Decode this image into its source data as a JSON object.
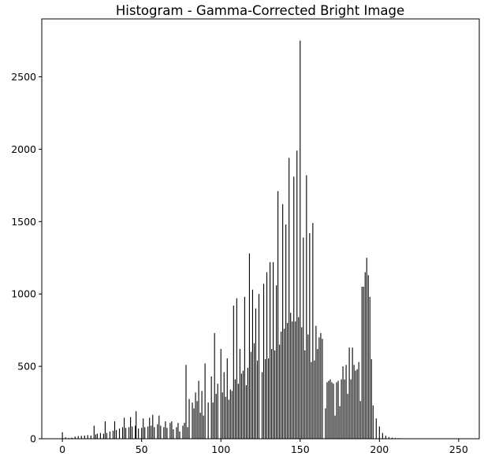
{
  "chart_data": {
    "type": "bar",
    "title": "Histogram - Gamma-Corrected Bright Image",
    "xlabel": "",
    "ylabel": "",
    "xlim": [
      -13,
      263
    ],
    "ylim": [
      0,
      2900
    ],
    "x_ticks": [
      0,
      50,
      100,
      150,
      200,
      250
    ],
    "y_ticks": [
      0,
      500,
      1000,
      1500,
      2000,
      2500
    ],
    "bar_color": "#000000",
    "grid": false,
    "bars": [
      [
        0,
        45
      ],
      [
        2,
        10
      ],
      [
        4,
        5
      ],
      [
        6,
        8
      ],
      [
        8,
        15
      ],
      [
        10,
        18
      ],
      [
        12,
        20
      ],
      [
        14,
        22
      ],
      [
        16,
        25
      ],
      [
        18,
        22
      ],
      [
        20,
        90
      ],
      [
        21,
        30
      ],
      [
        22,
        35
      ],
      [
        24,
        40
      ],
      [
        26,
        35
      ],
      [
        27,
        120
      ],
      [
        28,
        40
      ],
      [
        30,
        50
      ],
      [
        32,
        55
      ],
      [
        33,
        120
      ],
      [
        34,
        60
      ],
      [
        36,
        70
      ],
      [
        38,
        80
      ],
      [
        39,
        145
      ],
      [
        40,
        75
      ],
      [
        42,
        80
      ],
      [
        43,
        150
      ],
      [
        44,
        85
      ],
      [
        46,
        90
      ],
      [
        46.5,
        190
      ],
      [
        48,
        70
      ],
      [
        50,
        75
      ],
      [
        51,
        140
      ],
      [
        52,
        80
      ],
      [
        54,
        85
      ],
      [
        55,
        145
      ],
      [
        56,
        90
      ],
      [
        57,
        165
      ],
      [
        58,
        80
      ],
      [
        60,
        100
      ],
      [
        61,
        160
      ],
      [
        62,
        90
      ],
      [
        64,
        80
      ],
      [
        65,
        120
      ],
      [
        66,
        75
      ],
      [
        68,
        110
      ],
      [
        69,
        120
      ],
      [
        70,
        65
      ],
      [
        72,
        80
      ],
      [
        73,
        110
      ],
      [
        74,
        50
      ],
      [
        76,
        90
      ],
      [
        77,
        110
      ],
      [
        78,
        510
      ],
      [
        79,
        80
      ],
      [
        80,
        275
      ],
      [
        82,
        250
      ],
      [
        83,
        210
      ],
      [
        84,
        320
      ],
      [
        85,
        260
      ],
      [
        86,
        400
      ],
      [
        87,
        180
      ],
      [
        88,
        330
      ],
      [
        89,
        160
      ],
      [
        90,
        520
      ],
      [
        92,
        250
      ],
      [
        94,
        430
      ],
      [
        95,
        250
      ],
      [
        96,
        730
      ],
      [
        97,
        310
      ],
      [
        98,
        380
      ],
      [
        100,
        620
      ],
      [
        101,
        320
      ],
      [
        102,
        460
      ],
      [
        103,
        290
      ],
      [
        104,
        555
      ],
      [
        105,
        270
      ],
      [
        106,
        340
      ],
      [
        107,
        330
      ],
      [
        108,
        920
      ],
      [
        109,
        410
      ],
      [
        110,
        970
      ],
      [
        111,
        380
      ],
      [
        112,
        620
      ],
      [
        113,
        450
      ],
      [
        114,
        470
      ],
      [
        115,
        980
      ],
      [
        116,
        370
      ],
      [
        117,
        490
      ],
      [
        118,
        1280
      ],
      [
        119,
        600
      ],
      [
        120,
        1030
      ],
      [
        121,
        660
      ],
      [
        122,
        900
      ],
      [
        123,
        540
      ],
      [
        124,
        1000
      ],
      [
        126,
        460
      ],
      [
        127,
        1070
      ],
      [
        128,
        550
      ],
      [
        129,
        1150
      ],
      [
        130,
        555
      ],
      [
        131,
        1220
      ],
      [
        132,
        620
      ],
      [
        133,
        1220
      ],
      [
        134,
        610
      ],
      [
        135,
        1060
      ],
      [
        136,
        1710
      ],
      [
        137,
        650
      ],
      [
        138,
        740
      ],
      [
        139,
        1620
      ],
      [
        140,
        760
      ],
      [
        141,
        1480
      ],
      [
        142,
        800
      ],
      [
        143,
        1940
      ],
      [
        144,
        870
      ],
      [
        145,
        810
      ],
      [
        146,
        1810
      ],
      [
        147,
        810
      ],
      [
        148,
        1990
      ],
      [
        149,
        840
      ],
      [
        150,
        2750
      ],
      [
        151,
        770
      ],
      [
        152,
        1390
      ],
      [
        153,
        610
      ],
      [
        154,
        1820
      ],
      [
        155,
        720
      ],
      [
        156,
        1420
      ],
      [
        157,
        530
      ],
      [
        158,
        1490
      ],
      [
        159,
        540
      ],
      [
        160,
        780
      ],
      [
        161,
        620
      ],
      [
        162,
        700
      ],
      [
        163,
        730
      ],
      [
        164,
        690
      ],
      [
        166,
        210
      ],
      [
        167,
        390
      ],
      [
        168,
        400
      ],
      [
        169,
        410
      ],
      [
        170,
        390
      ],
      [
        171,
        380
      ],
      [
        172,
        160
      ],
      [
        173,
        390
      ],
      [
        174,
        400
      ],
      [
        175,
        225
      ],
      [
        176,
        410
      ],
      [
        177,
        500
      ],
      [
        178,
        410
      ],
      [
        179,
        510
      ],
      [
        180,
        310
      ],
      [
        181,
        630
      ],
      [
        182,
        410
      ],
      [
        183,
        630
      ],
      [
        184,
        510
      ],
      [
        185,
        470
      ],
      [
        186,
        480
      ],
      [
        187,
        530
      ],
      [
        188,
        260
      ],
      [
        189,
        1050
      ],
      [
        190,
        1050
      ],
      [
        191,
        1150
      ],
      [
        192,
        1250
      ],
      [
        193,
        1130
      ],
      [
        194,
        980
      ],
      [
        195,
        550
      ],
      [
        196,
        230
      ],
      [
        198,
        140
      ],
      [
        200,
        85
      ],
      [
        202,
        40
      ],
      [
        204,
        20
      ],
      [
        206,
        12
      ],
      [
        208,
        8
      ],
      [
        210,
        5
      ],
      [
        212,
        4
      ],
      [
        213,
        3
      ],
      [
        214,
        2
      ],
      [
        216,
        2
      ],
      [
        218,
        2
      ],
      [
        220,
        2
      ],
      [
        222,
        1
      ],
      [
        224,
        2
      ],
      [
        226,
        1
      ],
      [
        228,
        2
      ],
      [
        230,
        1
      ],
      [
        232,
        1
      ],
      [
        234,
        1
      ],
      [
        236,
        1
      ],
      [
        238,
        1
      ],
      [
        240,
        1
      ],
      [
        242,
        1
      ],
      [
        244,
        1
      ],
      [
        246,
        1
      ],
      [
        248,
        1
      ],
      [
        250,
        1
      ],
      [
        252,
        2
      ],
      [
        254,
        1
      ],
      [
        255,
        1
      ]
    ]
  }
}
